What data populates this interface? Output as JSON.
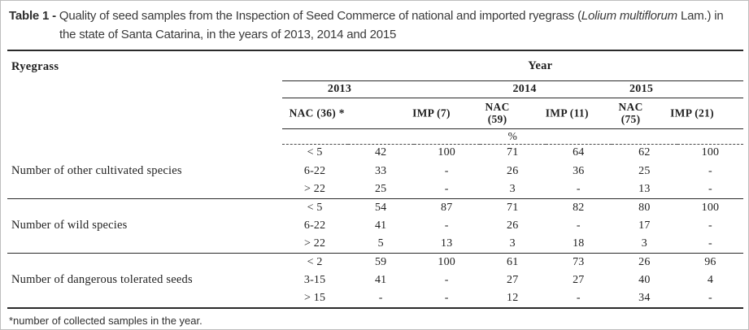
{
  "title": {
    "prefix": "Table 1 -",
    "before_italic": " Quality of seed samples from the Inspection of Seed Commerce of national and imported ryegrass (",
    "italic": "Lolium multiflorum",
    "after_italic": " Lam.) in the state of Santa Catarina, in the years of 2013, 2014 and 2015"
  },
  "table": {
    "row_header": "Ryegrass",
    "year_header": "Year",
    "years": [
      "2013",
      "2014",
      "2015"
    ],
    "sample_headers": [
      "NAC (36) *",
      "IMP (7)",
      "NAC\n(59)",
      "IMP (11)",
      "NAC\n(75)",
      "IMP (21)"
    ],
    "unit": "%",
    "groups": [
      {
        "label": "Number of other cultivated species",
        "rows": [
          {
            "range": "< 5",
            "values": [
              "42",
              "100",
              "71",
              "64",
              "62",
              "100"
            ]
          },
          {
            "range": "6-22",
            "values": [
              "33",
              "-",
              "26",
              "36",
              "25",
              "-"
            ]
          },
          {
            "range": "> 22",
            "values": [
              "25",
              "-",
              "3",
              "-",
              "13",
              "-"
            ]
          }
        ]
      },
      {
        "label": "Number of wild species",
        "rows": [
          {
            "range": "< 5",
            "values": [
              "54",
              "87",
              "71",
              "82",
              "80",
              "100"
            ]
          },
          {
            "range": "6-22",
            "values": [
              "41",
              "-",
              "26",
              "-",
              "17",
              "-"
            ]
          },
          {
            "range": "> 22",
            "values": [
              "5",
              "13",
              "3",
              "18",
              "3",
              "-"
            ]
          }
        ]
      },
      {
        "label": "Number of dangerous tolerated seeds",
        "rows": [
          {
            "range": "< 2",
            "values": [
              "59",
              "100",
              "61",
              "73",
              "26",
              "96"
            ]
          },
          {
            "range": "3-15",
            "values": [
              "41",
              "-",
              "27",
              "27",
              "40",
              "4"
            ]
          },
          {
            "range": "> 15",
            "values": [
              "-",
              "-",
              "12",
              "-",
              "34",
              "-"
            ]
          }
        ]
      }
    ]
  },
  "footnote": "*number of collected samples in the year."
}
